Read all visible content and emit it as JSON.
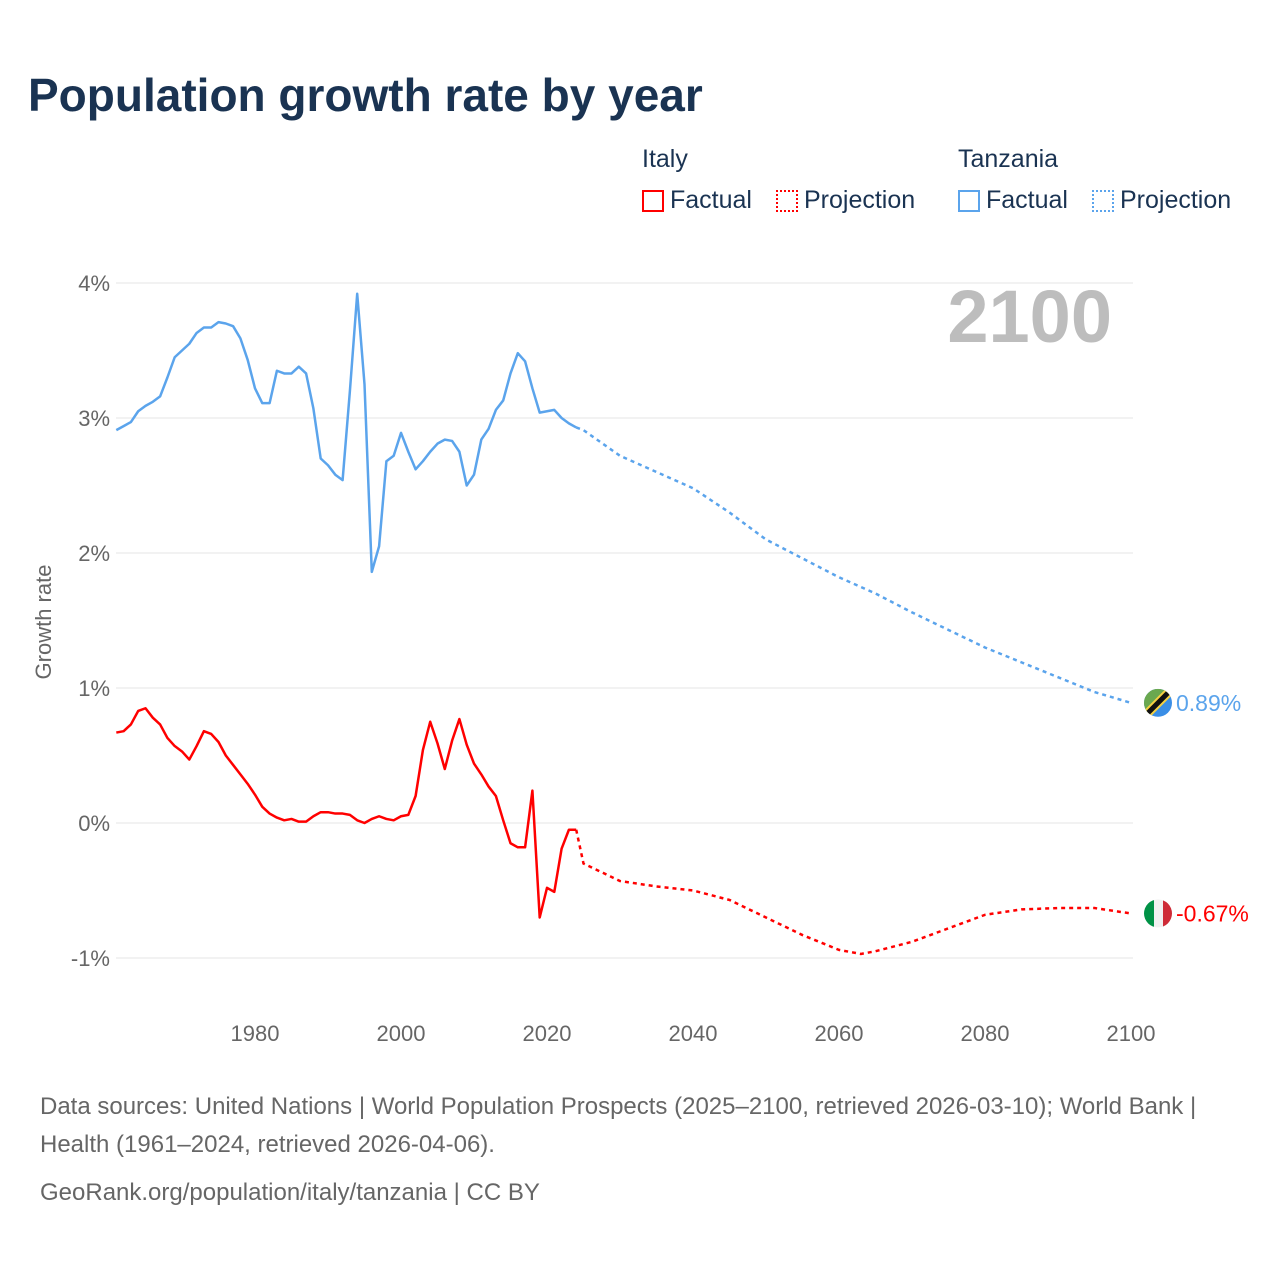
{
  "title": "Population growth rate by year",
  "legend": {
    "groups": [
      {
        "name": "Italy",
        "items": [
          "Factual",
          "Projection"
        ],
        "color": "#ff0000"
      },
      {
        "name": "Tanzania",
        "items": [
          "Factual",
          "Projection"
        ],
        "color": "#5ba4ec"
      }
    ]
  },
  "chart_data": {
    "type": "line",
    "title": "Population growth rate by year",
    "ylabel": "Growth rate",
    "xlabel": "",
    "xlim": [
      1961,
      2100
    ],
    "ylim": [
      -1.3,
      4.2
    ],
    "x_ticks": [
      1980,
      2000,
      2020,
      2040,
      2060,
      2080,
      2100
    ],
    "x_tick_labels": [
      "1980",
      "2000",
      "2020",
      "2040",
      "2060",
      "2080",
      "2100"
    ],
    "y_ticks": [
      -1,
      0,
      1,
      2,
      3,
      4
    ],
    "y_tick_labels": [
      "-1%",
      "0%",
      "1%",
      "2%",
      "3%",
      "4%"
    ],
    "grid": true,
    "year_label": "2100",
    "series": [
      {
        "name": "Tanzania",
        "color": "#5ba4ec",
        "end_label": "0.89%",
        "factual": {
          "x_start": 1961,
          "values": [
            2.91,
            2.94,
            2.97,
            3.05,
            3.09,
            3.12,
            3.16,
            3.3,
            3.45,
            3.5,
            3.55,
            3.63,
            3.67,
            3.67,
            3.71,
            3.7,
            3.68,
            3.59,
            3.43,
            3.22,
            3.11,
            3.11,
            3.35,
            3.33,
            3.33,
            3.38,
            3.33,
            3.07,
            2.7,
            2.65,
            2.58,
            2.54,
            3.2,
            3.92,
            3.25,
            1.86,
            2.05,
            2.68,
            2.72,
            2.89,
            2.75,
            2.62,
            2.68,
            2.75,
            2.81,
            2.84,
            2.83,
            2.75,
            2.5,
            2.58,
            2.84,
            2.92,
            3.06,
            3.13,
            3.33,
            3.48,
            3.42,
            3.22,
            3.04,
            3.05,
            3.06,
            3.0,
            2.96,
            2.93
          ]
        },
        "projection": {
          "x": [
            2024,
            2025,
            2030,
            2035,
            2040,
            2045,
            2050,
            2055,
            2060,
            2065,
            2070,
            2075,
            2080,
            2085,
            2090,
            2095,
            2100
          ],
          "values": [
            2.93,
            2.91,
            2.72,
            2.6,
            2.48,
            2.3,
            2.1,
            1.96,
            1.82,
            1.7,
            1.56,
            1.43,
            1.3,
            1.19,
            1.08,
            0.97,
            0.89
          ]
        }
      },
      {
        "name": "Italy",
        "color": "#ff0000",
        "end_label": "-0.67%",
        "factual": {
          "x_start": 1961,
          "values": [
            0.67,
            0.68,
            0.73,
            0.83,
            0.85,
            0.78,
            0.73,
            0.63,
            0.57,
            0.53,
            0.47,
            0.57,
            0.68,
            0.66,
            0.6,
            0.5,
            0.43,
            0.36,
            0.29,
            0.21,
            0.12,
            0.07,
            0.04,
            0.02,
            0.03,
            0.01,
            0.01,
            0.05,
            0.08,
            0.08,
            0.07,
            0.07,
            0.06,
            0.02,
            0.0,
            0.03,
            0.05,
            0.03,
            0.02,
            0.05,
            0.06,
            0.2,
            0.54,
            0.75,
            0.59,
            0.4,
            0.61,
            0.77,
            0.58,
            0.44,
            0.36,
            0.27,
            0.2,
            0.02,
            -0.15,
            -0.18,
            -0.18,
            0.24,
            -0.7,
            -0.48,
            -0.51,
            -0.19,
            -0.05,
            -0.05
          ]
        },
        "projection": {
          "x": [
            2024,
            2025,
            2030,
            2035,
            2040,
            2045,
            2050,
            2055,
            2060,
            2063,
            2065,
            2070,
            2075,
            2080,
            2085,
            2090,
            2095,
            2100
          ],
          "values": [
            -0.05,
            -0.3,
            -0.43,
            -0.47,
            -0.5,
            -0.57,
            -0.7,
            -0.83,
            -0.94,
            -0.97,
            -0.95,
            -0.88,
            -0.78,
            -0.68,
            -0.64,
            -0.63,
            -0.63,
            -0.67
          ]
        }
      }
    ]
  },
  "footer": {
    "sources": "Data sources: United Nations | World Population Prospects (2025–2100, retrieved 2026-03-10); World Bank | Health (1961–2024, retrieved 2026-04-06).",
    "link": "GeoRank.org/population/italy/tanzania | CC BY"
  }
}
